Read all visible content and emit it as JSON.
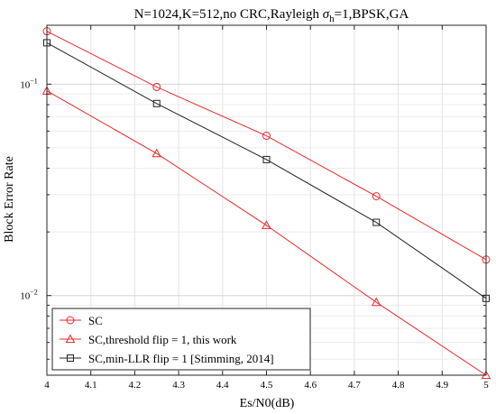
{
  "chart_data": {
    "type": "line",
    "title_main": "N=1024,K=512,no CRC,Rayleigh ",
    "title_sigma": "σ",
    "title_sub": "h",
    "title_rest": "=1,BPSK,GA",
    "xlabel": "Es/N0(dB)",
    "ylabel": "Block Error Rate",
    "xlim": [
      4,
      5
    ],
    "ylim": [
      0.0042,
      0.19
    ],
    "yscale": "log",
    "grid": true,
    "legend_position": "bottom-left",
    "x_ticks": [
      4,
      4.1,
      4.2,
      4.3,
      4.4,
      4.5,
      4.6,
      4.7,
      4.8,
      4.9,
      5
    ],
    "x_tick_labels": [
      "4",
      "4.1",
      "4.2",
      "4.3",
      "4.4",
      "4.5",
      "4.6",
      "4.7",
      "4.8",
      "4.9",
      "5"
    ],
    "y_major_ticks": [
      {
        "value": 0.1,
        "base": "10",
        "exp": "−1"
      },
      {
        "value": 0.01,
        "base": "10",
        "exp": "−2"
      }
    ],
    "x": [
      4,
      4.25,
      4.5,
      4.75,
      5
    ],
    "series": [
      {
        "name": "SC",
        "marker": "circle",
        "color": "#e8292b",
        "values": [
          0.178,
          0.097,
          0.057,
          0.0295,
          0.0148
        ]
      },
      {
        "name": "SC,threshold flip = 1, this work",
        "marker": "triangle",
        "color": "#e8292b",
        "values": [
          0.093,
          0.047,
          0.0215,
          0.0093,
          0.0042
        ]
      },
      {
        "name": "SC,min-LLR flip = 1 [Stimming, 2014]",
        "marker": "square",
        "color": "#222222",
        "values": [
          0.157,
          0.081,
          0.044,
          0.0222,
          0.0097
        ]
      }
    ]
  }
}
